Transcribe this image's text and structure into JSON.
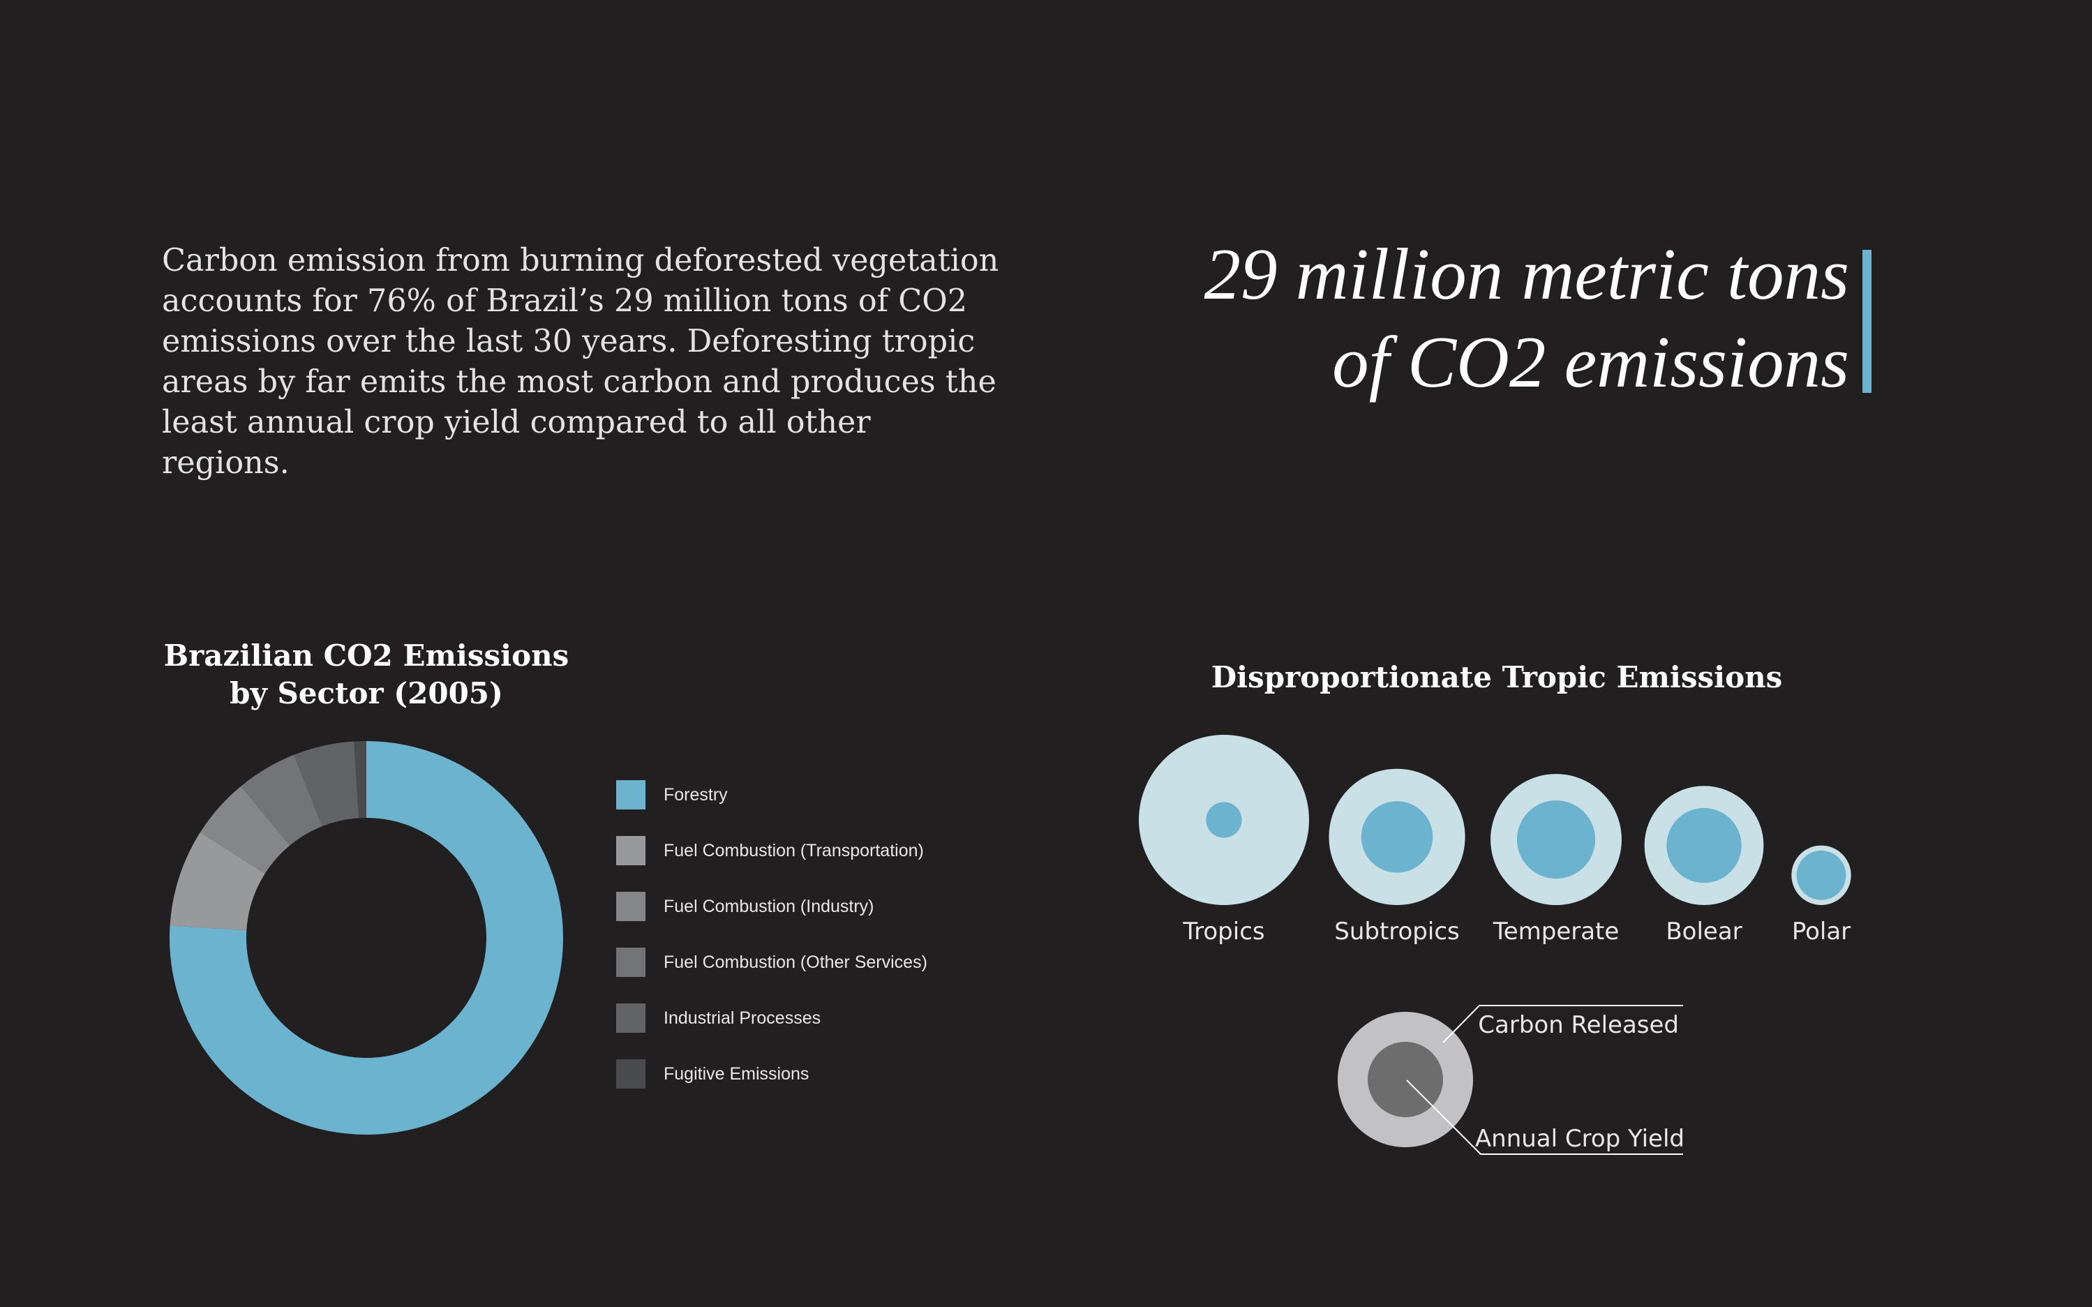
{
  "intro_text": "Carbon emission from burning deforested vegetation accounts for 76% of Brazil’s 29 million tons of CO2 emissions over the last 30 years. Deforesting tropic areas by far emits the most carbon and produces the least annual crop yield compared to all other regions.",
  "headline": {
    "line1": "29 million metric tons",
    "line2": "of CO2 emissions"
  },
  "colors": {
    "background": "#221f20",
    "accent": "#6cb3cf",
    "light_blue": "#c8e0e6"
  },
  "chart_data": [
    {
      "type": "pie",
      "title_line1": "Brazilian CO2 Emissions",
      "title_line2": "by Sector (2005)",
      "legend_position": "right",
      "slices": [
        {
          "label": "Forestry",
          "value": 76,
          "color": "#6cb3cf"
        },
        {
          "label": "Fuel Combustion (Transportation)",
          "value": 8,
          "color": "#98999b"
        },
        {
          "label": "Fuel Combustion (Industry)",
          "value": 5,
          "color": "#858688"
        },
        {
          "label": "Fuel Combustion (Other Services)",
          "value": 5,
          "color": "#737476"
        },
        {
          "label": "Industrial Processes",
          "value": 5,
          "color": "#626365"
        },
        {
          "label": "Fugitive Emissions",
          "value": 1,
          "color": "#4a4b4e"
        }
      ]
    },
    {
      "type": "scatter",
      "title": "Disproportionate Tropic Emissions",
      "categories": [
        "Tropics",
        "Subtropics",
        "Temperate",
        "Bolear",
        "Polar"
      ],
      "series": [
        {
          "name": "Carbon Released",
          "values": [
            100,
            80,
            77,
            70,
            35
          ],
          "color": "#c8e0e6"
        },
        {
          "name": "Annual Crop Yield",
          "values": [
            21,
            42,
            46,
            44,
            29
          ],
          "color": "#6cb3cf"
        }
      ],
      "key": {
        "outer_label": "Carbon Released",
        "inner_label": "Annual Crop Yield",
        "outer_color": "#c2c1c3",
        "inner_color": "#6d6d6d"
      }
    }
  ]
}
